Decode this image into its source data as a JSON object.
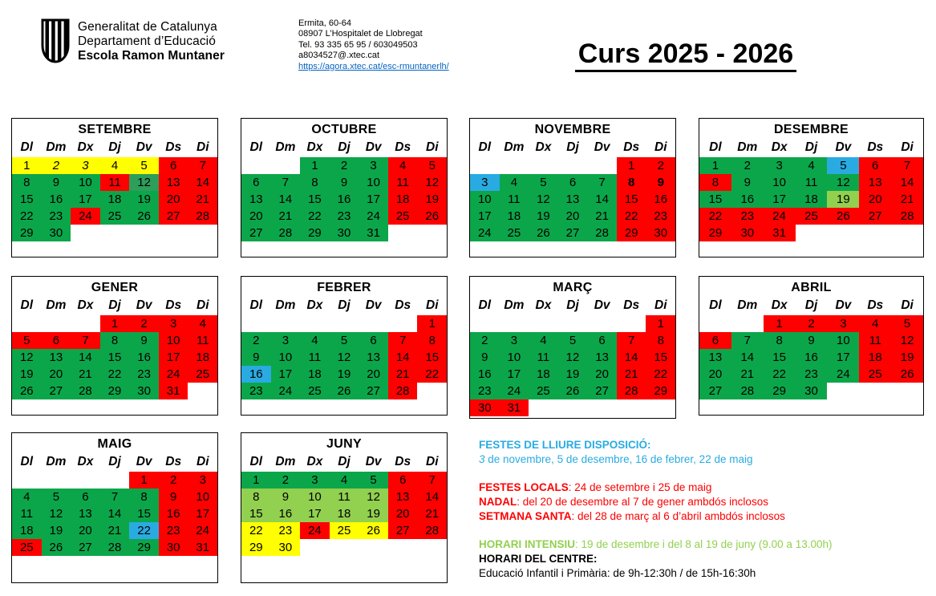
{
  "header": {
    "org_line1": "Generalitat de Catalunya",
    "org_line2": "Departament d’Educació",
    "org_line3": "Escola Ramon Muntaner",
    "address_line1": "Ermita, 60-64",
    "address_line2": "08907 L’Hospitalet de Llobregat",
    "phone": "Tel.  93 335 65 95 / 603049503",
    "email": "a8034527@.xtec.cat",
    "website": "https://agora.xtec.cat/esc-rmuntanerlh/",
    "course_title": "Curs 2025 - 2026"
  },
  "colors": {
    "red": "#fe0000",
    "green": "#0ca64a",
    "green_alt": "#2e9e5b",
    "light_green": "#92d050",
    "yellow": "#ffff00",
    "blue": "#29abe2",
    "cyan_text": "#29abe2",
    "light_green_text": "#92d050",
    "red_text": "#fe0000",
    "link": "#0563c1"
  },
  "calendar": {
    "day_headers": [
      "Dl",
      "Dm",
      "Dx",
      "Dj",
      "Dv",
      "Ds",
      "Di"
    ],
    "months": [
      {
        "name": "SETEMBRE",
        "weeks": [
          [
            "1|y",
            "2|y|i",
            "3|y|i",
            "4|y",
            "5|y",
            "6|r",
            "7|r"
          ],
          [
            "8|g",
            "9|g",
            "10|g",
            "11|r",
            "12|g2",
            "13|r",
            "14|r"
          ],
          [
            "15|g",
            "16|g",
            "17|g",
            "18|g",
            "19|g",
            "20|r",
            "21|r"
          ],
          [
            "22|g",
            "23|g",
            "24|r",
            "25|g",
            "26|g",
            "27|r",
            "28|r"
          ],
          [
            "29|g",
            "30|g",
            "",
            "",
            "",
            "",
            ""
          ]
        ]
      },
      {
        "name": "OCTUBRE",
        "weeks": [
          [
            "",
            "",
            "1|g",
            "2|g",
            "3|g",
            "4|r",
            "5|r"
          ],
          [
            "6|g",
            "7|g",
            "8|g",
            "9|g",
            "10|g",
            "11|r",
            "12|r"
          ],
          [
            "13|g",
            "14|g",
            "15|g",
            "16|g",
            "17|g",
            "18|r",
            "19|r"
          ],
          [
            "20|g",
            "21|g",
            "22|g",
            "23|g",
            "24|g",
            "25|r",
            "26|r"
          ],
          [
            "27|g",
            "28|g",
            "29|g",
            "30|g",
            "31|g",
            "",
            ""
          ]
        ]
      },
      {
        "name": "NOVEMBRE",
        "weeks": [
          [
            "",
            "",
            "",
            "",
            "",
            "1|r",
            "2|r"
          ],
          [
            "3|b",
            "4|g",
            "5|g",
            "6|g",
            "7|g",
            "8|r|b",
            "9|r|b"
          ],
          [
            "10|g",
            "11|g",
            "12|g",
            "13|g",
            "14|g",
            "15|r",
            "16|r"
          ],
          [
            "17|g",
            "18|g",
            "19|g",
            "20|g",
            "21|g",
            "22|r",
            "23|r"
          ],
          [
            "24|g",
            "25|g",
            "26|g",
            "27|g",
            "28|g",
            "29|r",
            "30|r"
          ]
        ]
      },
      {
        "name": "DESEMBRE",
        "weeks": [
          [
            "1|g",
            "2|g",
            "3|g",
            "4|g",
            "5|b",
            "6|r",
            "7|r"
          ],
          [
            "8|r",
            "9|g",
            "10|g",
            "11|g",
            "12|g",
            "13|r",
            "14|r"
          ],
          [
            "15|g",
            "16|g",
            "17|g",
            "18|g",
            "19|lg",
            "20|r",
            "21|r"
          ],
          [
            "22|r",
            "23|r",
            "24|r",
            "25|r",
            "26|r",
            "27|r",
            "28|r"
          ],
          [
            "29|r",
            "30|r",
            "31|r",
            "",
            "",
            "",
            ""
          ]
        ]
      },
      {
        "name": "GENER",
        "weeks": [
          [
            "",
            "",
            "",
            "1|r",
            "2|r",
            "3|r",
            "4|r"
          ],
          [
            "5|r",
            "6|r",
            "7|r",
            "8|g",
            "9|g",
            "10|r",
            "11|r"
          ],
          [
            "12|g",
            "13|g",
            "14|g",
            "15|g",
            "16|g",
            "17|r",
            "18|r"
          ],
          [
            "19|g",
            "20|g",
            "21|g",
            "22|g",
            "23|g",
            "24|r",
            "25|r"
          ],
          [
            "26|g",
            "27|g",
            "28|g",
            "29|g",
            "30|g",
            "31|r",
            ""
          ]
        ]
      },
      {
        "name": "FEBRER",
        "weeks": [
          [
            "",
            "",
            "",
            "",
            "",
            "",
            "1|r"
          ],
          [
            "2|g",
            "3|g",
            "4|g",
            "5|g",
            "6|g",
            "7|r",
            "8|r"
          ],
          [
            "9|g",
            "10|g",
            "11|g",
            "12|g",
            "13|g",
            "14|r",
            "15|r"
          ],
          [
            "16|b",
            "17|g",
            "18|g",
            "19|g",
            "20|g",
            "21|r",
            "22|r"
          ],
          [
            "23|g",
            "24|g",
            "25|g",
            "26|g",
            "27|g",
            "28|r",
            ""
          ]
        ]
      },
      {
        "name": "MARÇ",
        "weeks": [
          [
            "",
            "",
            "",
            "",
            "",
            "",
            "1|r"
          ],
          [
            "2|g",
            "3|g",
            "4|g",
            "5|g",
            "6|g",
            "7|r",
            "8|r"
          ],
          [
            "9|g",
            "10|g",
            "11|g",
            "12|g",
            "13|g",
            "14|r",
            "15|r"
          ],
          [
            "16|g",
            "17|g",
            "18|g",
            "19|g",
            "20|g",
            "21|r",
            "22|r"
          ],
          [
            "23|g",
            "24|g",
            "25|g",
            "26|g",
            "27|g",
            "28|r",
            "29|r"
          ],
          [
            "30|r",
            "31|r",
            "",
            "",
            "",
            "",
            ""
          ]
        ]
      },
      {
        "name": "ABRIL",
        "weeks": [
          [
            "",
            "",
            "1|r",
            "2|r",
            "3|r",
            "4|r",
            "5|r"
          ],
          [
            "6|r",
            "7|g",
            "8|g",
            "9|g",
            "10|g",
            "11|r",
            "12|r"
          ],
          [
            "13|g",
            "14|g",
            "15|g",
            "16|g",
            "17|g",
            "18|r",
            "19|r"
          ],
          [
            "20|g",
            "21|g",
            "22|g",
            "23|g",
            "24|g",
            "25|r",
            "26|r"
          ],
          [
            "27|g",
            "28|g",
            "29|g",
            "30|g",
            "",
            "",
            ""
          ]
        ]
      },
      {
        "name": "MAIG",
        "weeks": [
          [
            "",
            "",
            "",
            "",
            "1|r",
            "2|r",
            "3|r"
          ],
          [
            "4|g",
            "5|g",
            "6|g",
            "7|g",
            "8|g",
            "9|r",
            "10|r"
          ],
          [
            "11|g",
            "12|g",
            "13|g",
            "14|g",
            "15|g",
            "16|r",
            "17|r"
          ],
          [
            "18|g",
            "19|g",
            "20|g",
            "21|g",
            "22|b",
            "23|r",
            "24|r"
          ],
          [
            "25|r",
            "26|g",
            "27|g",
            "28|g",
            "29|g",
            "30|r",
            "31|r"
          ]
        ]
      },
      {
        "name": "JUNY",
        "weeks": [
          [
            "1|g",
            "2|g",
            "3|g",
            "4|g",
            "5|g",
            "6|r",
            "7|r"
          ],
          [
            "8|lg",
            "9|lg",
            "10|lg",
            "11|lg",
            "12|lg",
            "13|r",
            "14|r"
          ],
          [
            "15|lg",
            "16|lg",
            "17|lg",
            "18|lg",
            "19|lg",
            "20|r",
            "21|r"
          ],
          [
            "22|y",
            "23|y",
            "24|r",
            "25|y",
            "26|y",
            "27|r",
            "28|r"
          ],
          [
            "29|y",
            "30|y",
            "",
            "",
            "",
            "",
            ""
          ]
        ]
      }
    ]
  },
  "legend": {
    "lines": [
      [
        {
          "t": "FESTES DE LLIURE DISPOSICIÓ:",
          "b": true,
          "c": "cyan"
        }
      ],
      [
        {
          "t": " 3",
          "i": true,
          "c": "cyan"
        },
        {
          "t": " de novembre, 5 de desembre, 16 de febrer, 22 de maig",
          "c": "cyan"
        }
      ],
      "gap",
      [
        {
          "t": "FESTES LOCALS",
          "b": true,
          "c": "red"
        },
        {
          "t": ": 24 de setembre i 25 de maig",
          "c": "red"
        }
      ],
      [
        {
          "t": "NADAL",
          "b": true,
          "c": "red"
        },
        {
          "t": ": del 20 de desembre al 7 de gener ambdós inclosos",
          "c": "red"
        }
      ],
      [
        {
          "t": "SETMANA SANTA",
          "b": true,
          "c": "red"
        },
        {
          "t": ": del 28 de març al 6 d’abril ambdós inclosos",
          "c": "red"
        }
      ],
      "gap",
      [
        {
          "t": "HORARI INTENSIU",
          "b": true,
          "c": "lgreen"
        },
        {
          "t": ": 19 de desembre i del 8 al 19 de juny (9.00 a 13.00h)",
          "c": "lgreen"
        }
      ],
      [
        {
          "t": "HORARI DEL CENTRE:",
          "b": true,
          "c": "black"
        }
      ],
      [
        {
          "t": "Educació Infantil i Primària: de 9h-12:30h / de 15h-16:30h",
          "c": "black"
        }
      ]
    ]
  }
}
